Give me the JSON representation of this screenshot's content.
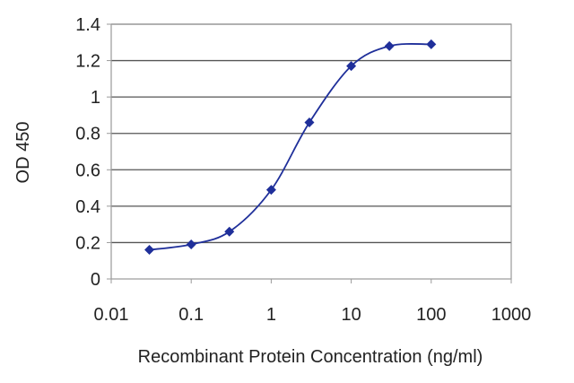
{
  "chart_data": {
    "type": "scatter",
    "title": "",
    "xlabel": "Recombinant Protein Concentration (ng/ml)",
    "ylabel": "OD 450",
    "x_scale": "log",
    "xlim": [
      0.01,
      1000
    ],
    "ylim": [
      0,
      1.4
    ],
    "x_ticks": [
      "0.01",
      "0.1",
      "1",
      "10",
      "100",
      "1000"
    ],
    "y_ticks": [
      "0",
      "0.2",
      "0.4",
      "0.6",
      "0.8",
      "1",
      "1.2",
      "1.4"
    ],
    "grid": "horizontal",
    "series": [
      {
        "x": [
          0.03,
          0.1,
          0.3,
          1,
          3,
          10,
          30,
          100
        ],
        "y": [
          0.16,
          0.19,
          0.26,
          0.49,
          0.86,
          1.17,
          1.28,
          1.29
        ],
        "fit_line": true
      }
    ],
    "colors": {
      "series": "#1f2f9a",
      "grid": "#555555",
      "frame": "#9a9a9a"
    }
  }
}
